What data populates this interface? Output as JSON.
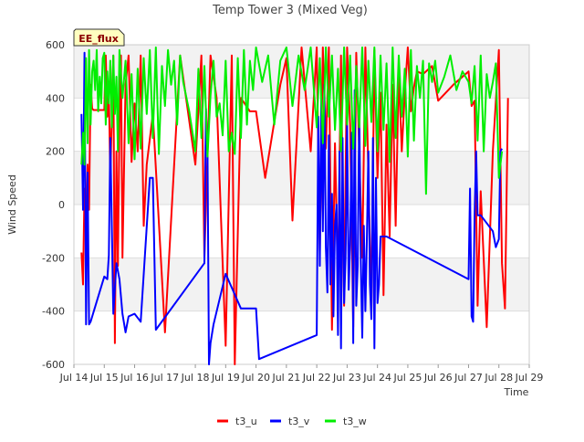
{
  "chart_data": {
    "type": "line",
    "title": "Temp Tower 3 (Mixed Veg)",
    "xlabel": "Time",
    "ylabel": "Wind Speed",
    "badge": "EE_flux",
    "xlim": [
      14,
      29
    ],
    "ylim": [
      -600,
      600
    ],
    "x_ticks": [
      14,
      15,
      16,
      17,
      18,
      19,
      20,
      21,
      22,
      23,
      24,
      25,
      26,
      27,
      28,
      29
    ],
    "x_tick_labels": [
      "Jul 14",
      "Jul 15",
      "Jul 16",
      "Jul 17",
      "Jul 18",
      "Jul 19",
      "Jul 20",
      "Jul 21",
      "Jul 22",
      "Jul 23",
      "Jul 24",
      "Jul 25",
      "Jul 26",
      "Jul 27",
      "Jul 28",
      "Jul 29"
    ],
    "y_ticks": [
      -600,
      -400,
      -200,
      0,
      200,
      400,
      600
    ],
    "y_tick_labels": [
      "-600",
      "-400",
      "-200",
      "0",
      "200",
      "400",
      "600"
    ],
    "bands": [
      [
        -400,
        -200
      ],
      [
        0,
        200
      ],
      [
        400,
        600
      ]
    ],
    "legend_position": "bottom-center",
    "series": [
      {
        "name": "t3_u",
        "color": "#ff0000",
        "x": [
          14.25,
          14.3,
          14.35,
          14.4,
          14.45,
          14.5,
          14.55,
          14.6,
          14.65,
          14.7,
          15.0,
          15.05,
          15.1,
          15.15,
          15.2,
          15.3,
          15.35,
          15.4,
          15.45,
          15.5,
          15.55,
          15.6,
          15.7,
          15.8,
          15.9,
          16.0,
          16.1,
          16.2,
          16.3,
          16.4,
          16.6,
          17.0,
          17.5,
          18.0,
          18.2,
          18.3,
          18.5,
          18.7,
          19.0,
          19.2,
          19.3,
          19.5,
          19.8,
          20.0,
          20.3,
          20.8,
          21.0,
          21.2,
          21.5,
          21.8,
          22.0,
          22.1,
          22.2,
          22.3,
          22.4,
          22.5,
          22.6,
          22.7,
          22.8,
          22.9,
          23.0,
          23.1,
          23.2,
          23.3,
          23.4,
          23.5,
          23.6,
          23.7,
          23.8,
          23.9,
          24.0,
          24.1,
          24.2,
          24.3,
          24.4,
          24.5,
          24.6,
          24.7,
          24.8,
          24.9,
          25.0,
          25.1,
          25.2,
          25.3,
          25.5,
          25.8,
          26.0,
          26.5,
          27.0,
          27.1,
          27.2,
          27.3,
          27.4,
          27.6,
          27.8,
          28.0,
          28.1,
          28.2,
          28.3
        ],
        "y": [
          -180,
          -300,
          60,
          -120,
          150,
          -20,
          450,
          360,
          355,
          355,
          355,
          560,
          330,
          420,
          100,
          560,
          -520,
          200,
          -230,
          300,
          560,
          -200,
          450,
          560,
          160,
          380,
          200,
          560,
          -80,
          150,
          340,
          -480,
          560,
          150,
          560,
          -200,
          560,
          400,
          -530,
          560,
          -600,
          400,
          350,
          350,
          100,
          450,
          550,
          -60,
          590,
          200,
          590,
          -180,
          590,
          210,
          590,
          -470,
          230,
          -300,
          560,
          -380,
          590,
          300,
          -460,
          570,
          200,
          -200,
          590,
          120,
          -400,
          580,
          100,
          420,
          -340,
          300,
          -120,
          450,
          -80,
          500,
          200,
          420,
          590,
          350,
          440,
          500,
          490,
          520,
          390,
          450,
          500,
          370,
          390,
          -380,
          50,
          -460,
          200,
          580,
          -220,
          -390,
          400
        ]
      },
      {
        "name": "t3_v",
        "color": "#0000ff",
        "x": [
          14.25,
          14.3,
          14.35,
          14.4,
          14.45,
          14.5,
          14.55,
          15.0,
          15.1,
          15.15,
          15.2,
          15.3,
          15.4,
          15.5,
          15.6,
          15.7,
          15.8,
          16.0,
          16.2,
          16.5,
          16.6,
          16.7,
          18.3,
          18.35,
          18.4,
          18.45,
          18.5,
          18.6,
          19.0,
          19.5,
          20.0,
          20.1,
          22.0,
          22.05,
          22.1,
          22.15,
          22.2,
          22.25,
          22.3,
          22.35,
          22.4,
          22.45,
          22.5,
          22.55,
          22.6,
          22.65,
          22.7,
          22.75,
          22.8,
          22.85,
          22.9,
          22.95,
          23.0,
          23.05,
          23.1,
          23.15,
          23.2,
          23.25,
          23.3,
          23.35,
          23.4,
          23.45,
          23.5,
          23.55,
          23.6,
          23.65,
          23.7,
          23.75,
          23.8,
          23.85,
          23.9,
          23.95,
          24.0,
          24.05,
          24.1,
          24.2,
          24.3,
          27.0,
          27.05,
          27.1,
          27.15,
          27.2,
          27.25,
          27.3,
          27.35,
          27.4,
          27.8,
          27.9,
          28.0,
          28.05,
          28.1
        ],
        "y": [
          340,
          -20,
          570,
          -450,
          120,
          -450,
          -440,
          -270,
          -280,
          -190,
          250,
          -410,
          -220,
          -280,
          -410,
          -480,
          -420,
          -410,
          -440,
          100,
          100,
          -470,
          -220,
          360,
          200,
          -600,
          -520,
          -450,
          -260,
          -390,
          -390,
          -580,
          -490,
          330,
          -230,
          400,
          -100,
          450,
          -160,
          -330,
          260,
          -300,
          40,
          -420,
          -80,
          0,
          -490,
          200,
          -540,
          250,
          -370,
          -200,
          300,
          -320,
          -150,
          270,
          -520,
          430,
          -380,
          -230,
          360,
          -210,
          -500,
          -80,
          -400,
          -140,
          200,
          -300,
          -430,
          250,
          -540,
          100,
          -370,
          -300,
          -120,
          -120,
          -120,
          -280,
          60,
          -420,
          -440,
          -40,
          200,
          -40,
          -40,
          -40,
          -100,
          -160,
          -130,
          200,
          210
        ]
      },
      {
        "name": "t3_w",
        "color": "#00ee00",
        "x": [
          14.25,
          14.3,
          14.35,
          14.4,
          14.45,
          14.5,
          14.55,
          14.6,
          14.65,
          14.7,
          14.75,
          14.8,
          14.85,
          14.9,
          14.95,
          15.0,
          15.05,
          15.1,
          15.15,
          15.2,
          15.25,
          15.3,
          15.35,
          15.4,
          15.45,
          15.5,
          15.6,
          15.7,
          15.8,
          15.9,
          16.0,
          16.1,
          16.2,
          16.3,
          16.4,
          16.5,
          16.6,
          16.7,
          16.8,
          16.9,
          17.0,
          17.1,
          17.2,
          17.3,
          17.4,
          17.5,
          17.6,
          17.8,
          18.0,
          18.1,
          18.2,
          18.3,
          18.4,
          18.5,
          18.6,
          18.7,
          18.8,
          18.9,
          19.0,
          19.1,
          19.2,
          19.3,
          19.4,
          19.5,
          19.6,
          19.7,
          19.8,
          19.9,
          20.0,
          20.2,
          20.4,
          20.6,
          20.8,
          21.0,
          21.2,
          21.4,
          21.6,
          21.8,
          22.0,
          22.1,
          22.2,
          22.3,
          22.4,
          22.5,
          22.6,
          22.7,
          22.8,
          22.9,
          23.0,
          23.1,
          23.2,
          23.3,
          23.4,
          23.5,
          23.6,
          23.7,
          23.8,
          23.9,
          24.0,
          24.1,
          24.2,
          24.3,
          24.4,
          24.5,
          24.6,
          24.7,
          24.8,
          24.9,
          25.0,
          25.1,
          25.2,
          25.3,
          25.4,
          25.5,
          25.6,
          25.7,
          25.8,
          25.9,
          26.0,
          26.2,
          26.4,
          26.6,
          26.8,
          27.0,
          27.1,
          27.2,
          27.3,
          27.4,
          27.5,
          27.6,
          27.7,
          27.8,
          27.9,
          28.0,
          28.1
        ],
        "y": [
          150,
          270,
          150,
          550,
          230,
          580,
          300,
          500,
          540,
          430,
          580,
          350,
          480,
          380,
          550,
          570,
          300,
          500,
          380,
          540,
          290,
          560,
          340,
          480,
          200,
          580,
          400,
          540,
          230,
          490,
          170,
          510,
          210,
          550,
          340,
          580,
          250,
          590,
          190,
          520,
          370,
          580,
          450,
          540,
          300,
          560,
          460,
          350,
          200,
          510,
          250,
          520,
          180,
          410,
          540,
          330,
          380,
          260,
          540,
          200,
          270,
          190,
          550,
          250,
          580,
          300,
          540,
          430,
          590,
          460,
          560,
          300,
          540,
          590,
          370,
          560,
          430,
          590,
          290,
          550,
          230,
          590,
          330,
          560,
          280,
          510,
          200,
          590,
          300,
          560,
          210,
          520,
          290,
          590,
          220,
          540,
          310,
          590,
          200,
          560,
          280,
          530,
          160,
          590,
          250,
          560,
          330,
          510,
          180,
          580,
          240,
          520,
          400,
          540,
          40,
          530,
          460,
          540,
          420,
          480,
          560,
          430,
          500,
          460,
          380,
          520,
          240,
          560,
          200,
          490,
          400,
          460,
          530,
          100,
          200
        ]
      }
    ]
  }
}
